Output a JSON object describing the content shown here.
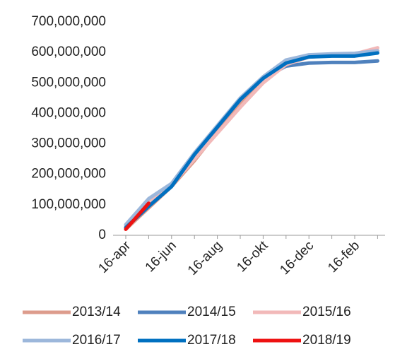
{
  "chart_data": {
    "type": "line",
    "categories": [
      "16-apr",
      null,
      "16-jun",
      null,
      "16-aug",
      null,
      "16-okt",
      null,
      "16-dec",
      null,
      "16-feb",
      null
    ],
    "series": [
      {
        "name": "2013/14",
        "color": "#dd9c8c",
        "values": [
          20000000,
          90000000,
          160000000,
          245000000,
          340000000,
          430000000,
          505000000,
          560000000,
          585000000,
          590000000,
          592000000,
          605000000
        ]
      },
      {
        "name": "2014/15",
        "color": "#4f81bd",
        "values": [
          25000000,
          95000000,
          160000000,
          265000000,
          355000000,
          445000000,
          515000000,
          555000000,
          565000000,
          567000000,
          567000000,
          572000000
        ]
      },
      {
        "name": "2015/16",
        "color": "#f2b9b9",
        "values": [
          30000000,
          110000000,
          165000000,
          250000000,
          335000000,
          420000000,
          500000000,
          560000000,
          585000000,
          590000000,
          595000000,
          615000000
        ]
      },
      {
        "name": "2016/17",
        "color": "#9cb7db",
        "values": [
          35000000,
          120000000,
          170000000,
          270000000,
          360000000,
          450000000,
          520000000,
          575000000,
          592000000,
          595000000,
          597000000,
          605000000
        ]
      },
      {
        "name": "2017/18",
        "color": "#0070c0",
        "values": [
          25000000,
          95000000,
          160000000,
          265000000,
          355000000,
          445000000,
          515000000,
          565000000,
          585000000,
          588000000,
          588000000,
          598000000
        ]
      },
      {
        "name": "2018/19",
        "color": "#ee1111",
        "values": [
          20000000,
          105000000,
          null,
          null,
          null,
          null,
          null,
          null,
          null,
          null,
          null,
          null
        ]
      }
    ],
    "ylim": [
      0,
      700000000
    ],
    "yticks": [
      0,
      {
        "value": 100000000,
        "label": "100,000,000"
      },
      {
        "value": 200000000,
        "label": "200,000,000"
      },
      {
        "value": 300000000,
        "label": "300,000,000"
      },
      {
        "value": 400000000,
        "label": "400,000,000"
      },
      {
        "value": 500000000,
        "label": "500,000,000"
      },
      {
        "value": 600000000,
        "label": "600,000,000"
      },
      {
        "value": 700000000,
        "label": "700,000,000"
      }
    ],
    "grid": false
  }
}
